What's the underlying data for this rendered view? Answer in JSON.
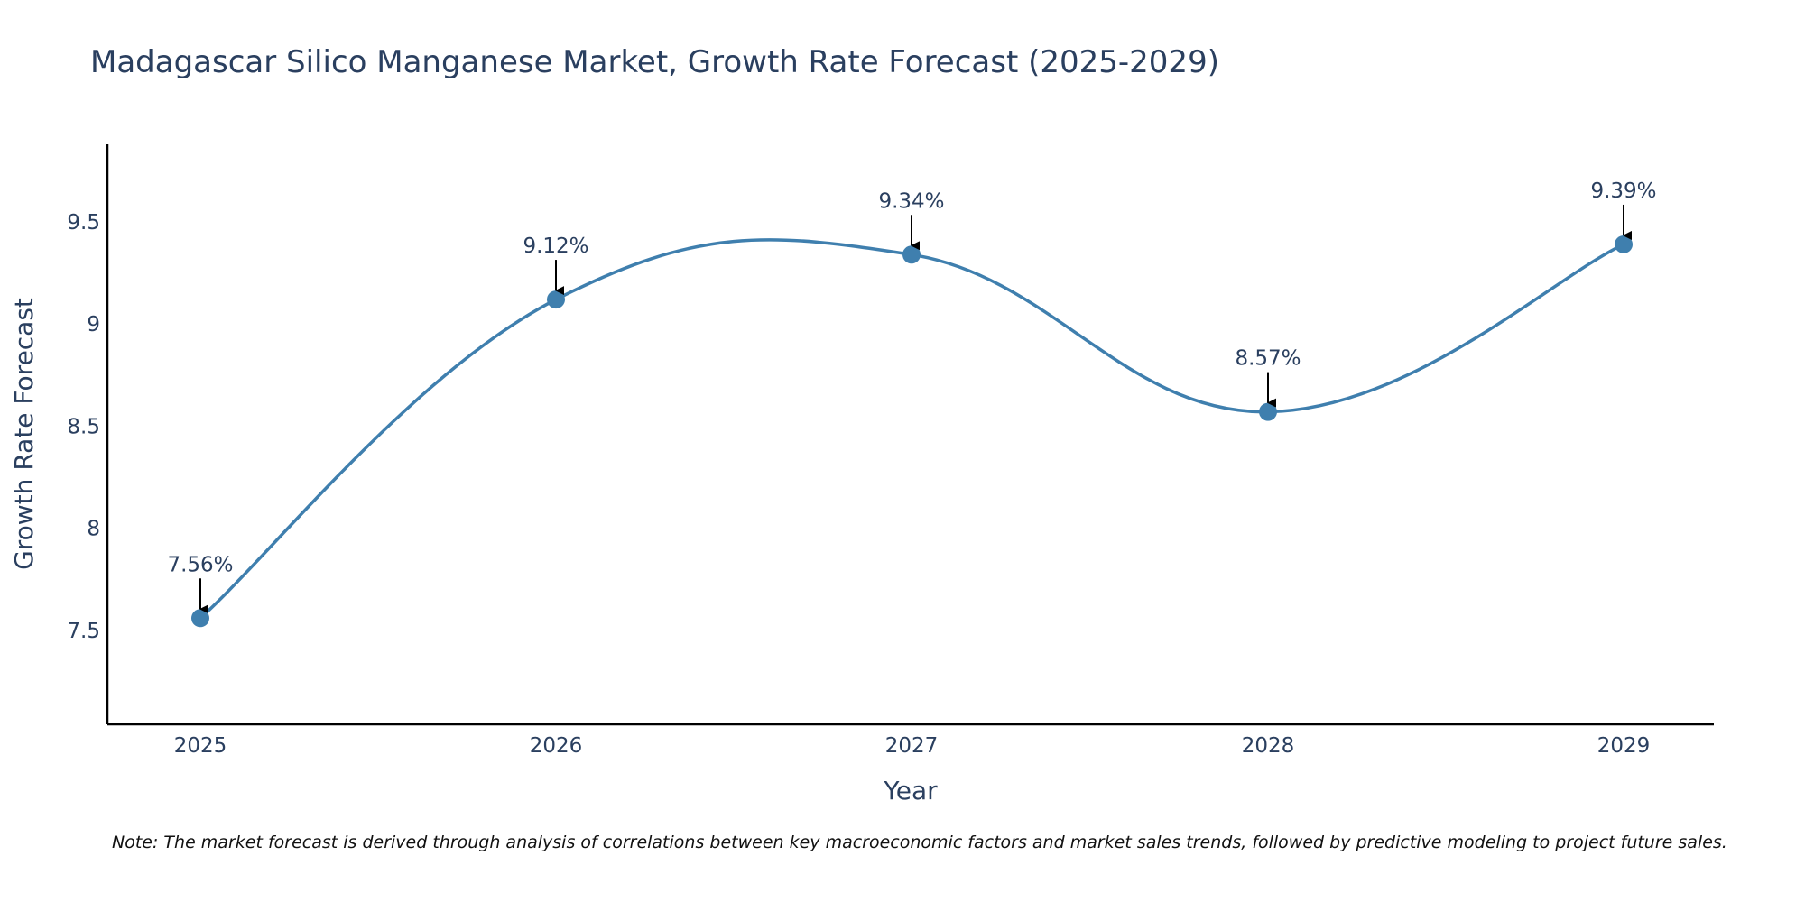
{
  "chart_data": {
    "type": "line",
    "title": "Madagascar Silico Manganese Market, Growth Rate Forecast (2025-2029)",
    "xlabel": "Year",
    "ylabel": "Growth Rate Forecast",
    "categories": [
      "2025",
      "2026",
      "2027",
      "2028",
      "2029"
    ],
    "values": [
      7.56,
      9.12,
      9.34,
      8.57,
      9.39
    ],
    "data_labels": [
      "7.56%",
      "9.12%",
      "9.34%",
      "8.57%",
      "9.39%"
    ],
    "y_ticks": [
      7.5,
      8,
      8.5,
      9,
      9.5
    ],
    "y_tick_labels": [
      "7.5",
      "8",
      "8.5",
      "9",
      "9.5"
    ],
    "ylim": [
      7.04,
      9.88
    ],
    "grid": false,
    "legend": "none",
    "line_shape": "spline",
    "annotations_arrows": true,
    "note": "Note: The market forecast is derived through analysis of correlations between key macroeconomic factors and market sales trends, followed by predictive modeling to project future sales."
  },
  "colors": {
    "line": "#3f7fae",
    "marker": "#3f7fae",
    "axis": "#000000",
    "text": "#2a3f5f",
    "arrow": "#000000"
  }
}
